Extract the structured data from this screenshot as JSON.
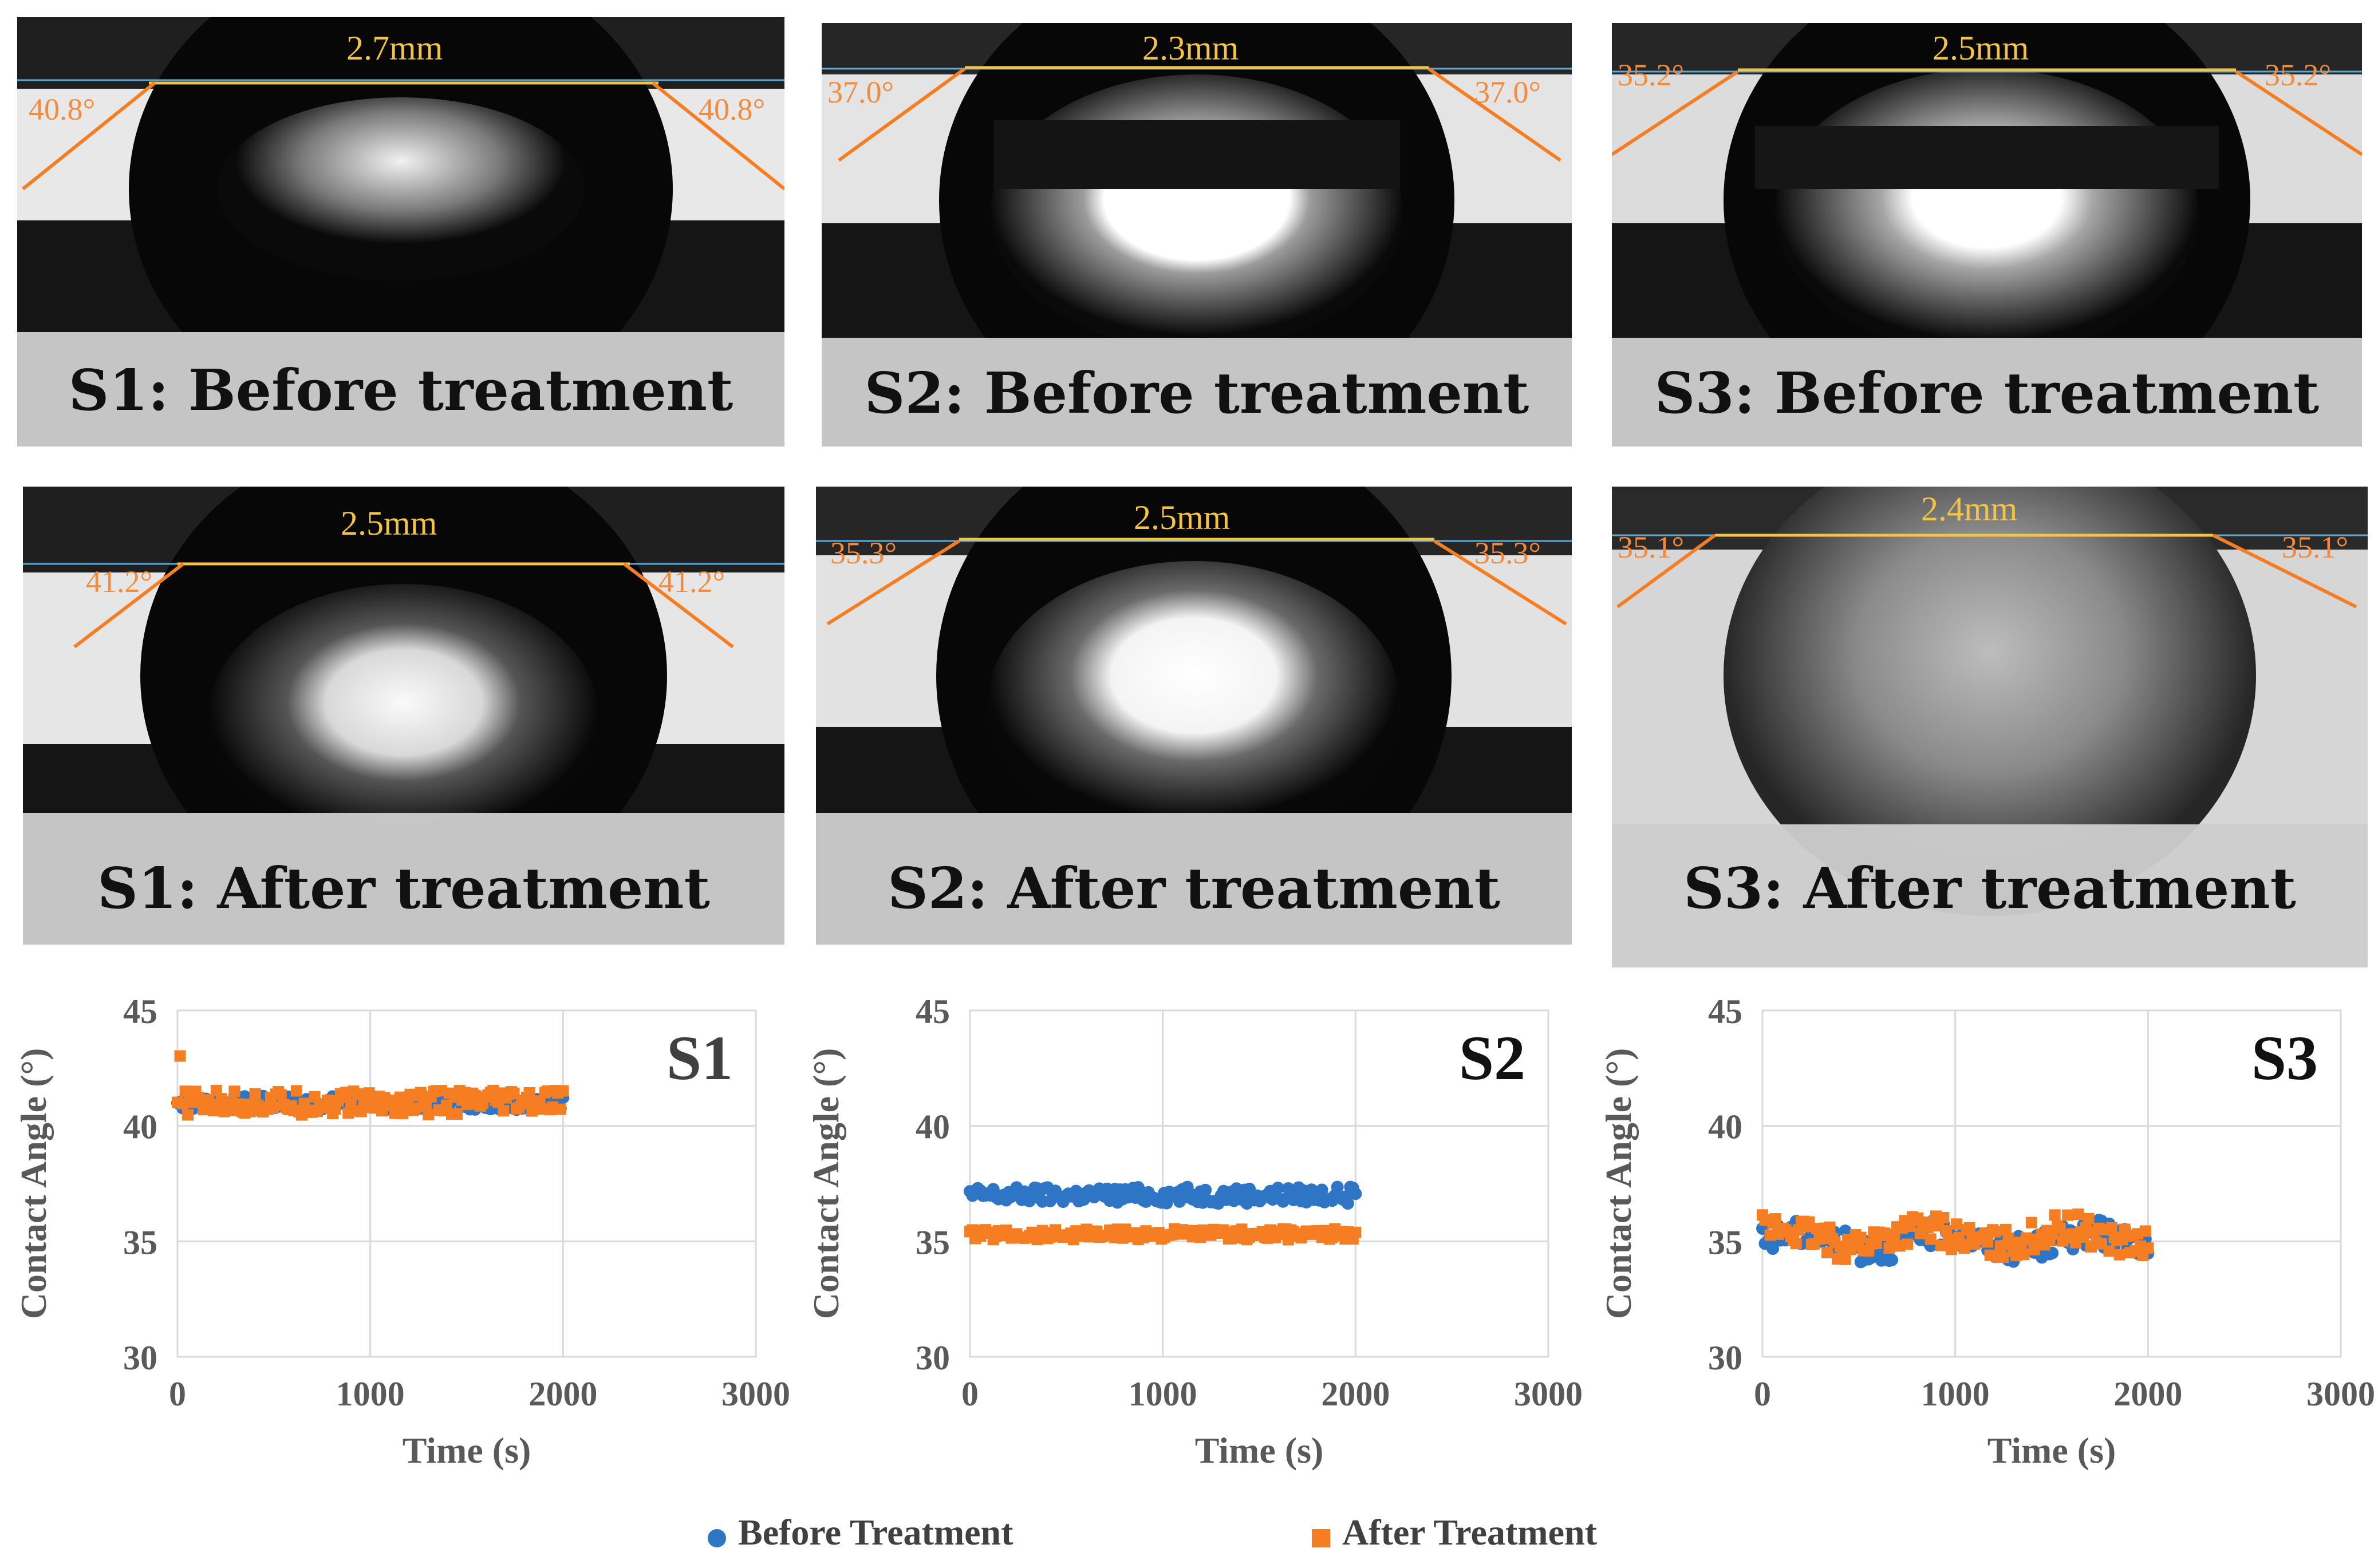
{
  "panels": [
    {
      "caption": "S1: Before treatment",
      "width_label": "2.7mm",
      "left_angle": "40.8°",
      "right_angle": "40.8°"
    },
    {
      "caption": "S2: Before treatment",
      "width_label": "2.3mm",
      "left_angle": "37.0°",
      "right_angle": "37.0°"
    },
    {
      "caption": "S3: Before treatment",
      "width_label": "2.5mm",
      "left_angle": "35.2°",
      "right_angle": "35.2°"
    },
    {
      "caption": "S1: After treatment",
      "width_label": "2.5mm",
      "left_angle": "41.2°",
      "right_angle": "41.2°"
    },
    {
      "caption": "S2: After treatment",
      "width_label": "2.5mm",
      "left_angle": "35.3°",
      "right_angle": "35.3°"
    },
    {
      "caption": "S3: After treatment",
      "width_label": "2.4mm",
      "left_angle": "35.1°",
      "right_angle": "35.1°"
    }
  ],
  "legend": {
    "before": "Before Treatment",
    "after": "After Treatment"
  },
  "colors": {
    "before": "#2e75c6",
    "after": "#f57d22",
    "caption_band": "#cdcdcd",
    "width_line": "#f5c342",
    "angle": "#f58a3a"
  },
  "chart_data": [
    {
      "type": "scatter",
      "title": "S1",
      "xlabel": "Time (s)",
      "ylabel": "Contact Angle (°)",
      "xlim": [
        0,
        3000
      ],
      "ylim": [
        30,
        45
      ],
      "xticks": [
        0,
        1000,
        2000,
        3000
      ],
      "yticks": [
        30,
        35,
        40,
        45
      ],
      "series": [
        {
          "name": "Before Treatment",
          "x_range": [
            0,
            2000
          ],
          "mean": 41.0,
          "amplitude": 0.5,
          "n": 150
        },
        {
          "name": "After Treatment",
          "x_range": [
            0,
            2000
          ],
          "mean": 41.0,
          "amplitude": 0.9,
          "n": 150
        }
      ]
    },
    {
      "type": "scatter",
      "title": "S2",
      "xlabel": "Time (s)",
      "ylabel": "Contact Angle (°)",
      "xlim": [
        0,
        3000
      ],
      "ylim": [
        30,
        45
      ],
      "xticks": [
        0,
        1000,
        2000,
        3000
      ],
      "yticks": [
        30,
        35,
        40,
        45
      ],
      "series": [
        {
          "name": "Before Treatment",
          "x_range": [
            0,
            2000
          ],
          "mean": 37.0,
          "amplitude": 0.6,
          "n": 150
        },
        {
          "name": "After Treatment",
          "x_range": [
            0,
            2000
          ],
          "mean": 35.3,
          "amplitude": 0.4,
          "n": 150
        }
      ]
    },
    {
      "type": "scatter",
      "title": "S3",
      "xlabel": "Time (s)",
      "ylabel": "Contact Angle (°)",
      "xlim": [
        0,
        3000
      ],
      "ylim": [
        30,
        45
      ],
      "xticks": [
        0,
        1000,
        2000,
        3000
      ],
      "yticks": [
        30,
        35,
        40,
        45
      ],
      "series": [
        {
          "name": "Before Treatment",
          "x_range": [
            0,
            2000
          ],
          "mean": 35.0,
          "amplitude": 1.0,
          "n": 150
        },
        {
          "name": "After Treatment",
          "x_range": [
            0,
            2000
          ],
          "mean": 35.2,
          "amplitude": 1.1,
          "n": 150
        }
      ]
    }
  ]
}
